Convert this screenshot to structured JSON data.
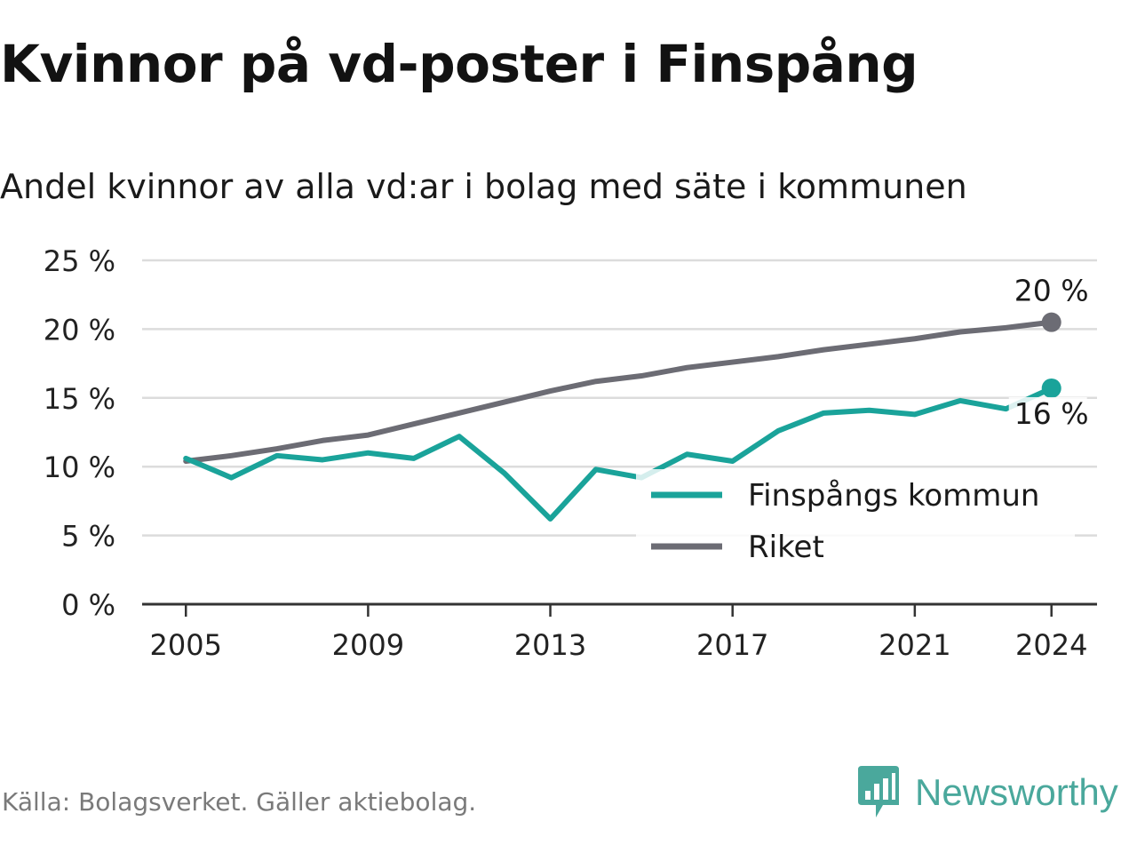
{
  "title": "Kvinnor på vd-poster i Finspång",
  "subtitle": "Andel kvinnor av alla vd:ar i bolag med säte i kommunen",
  "source": "Källa: Bolagsverket. Gäller aktiebolag.",
  "brand": {
    "name": "Newsworthy",
    "icon": "newsworthy-logo-icon",
    "color": "#4aa89c"
  },
  "chart_data": {
    "type": "line",
    "x": [
      2005,
      2006,
      2007,
      2008,
      2009,
      2010,
      2011,
      2012,
      2013,
      2014,
      2015,
      2016,
      2017,
      2018,
      2019,
      2020,
      2021,
      2022,
      2023,
      2024
    ],
    "xticks": [
      2005,
      2009,
      2013,
      2017,
      2021,
      2024
    ],
    "xtick_labels": [
      "2005",
      "2009",
      "2013",
      "2017",
      "2021",
      "2024"
    ],
    "yticks": [
      0,
      5,
      10,
      15,
      20,
      25
    ],
    "ytick_labels": [
      "0 %",
      "5 %",
      "10 %",
      "15 %",
      "20 %",
      "25 %"
    ],
    "ylim": [
      0,
      25
    ],
    "xlim": [
      2004.04,
      2025.0
    ],
    "grid": true,
    "legend_position": "bottom-right",
    "series": [
      {
        "name": "Finspångs kommun",
        "color": "#1aa39a",
        "values": [
          10.6,
          9.2,
          10.8,
          10.5,
          11.0,
          10.6,
          12.2,
          9.5,
          6.2,
          9.8,
          9.2,
          10.9,
          10.4,
          12.6,
          13.9,
          14.1,
          13.8,
          14.8,
          14.2,
          15.7
        ],
        "end_label": "16 %"
      },
      {
        "name": "Riket",
        "color": "#6c6c74",
        "values": [
          10.4,
          10.8,
          11.3,
          11.9,
          12.3,
          13.1,
          13.9,
          14.7,
          15.5,
          16.2,
          16.6,
          17.2,
          17.6,
          18.0,
          18.5,
          18.9,
          19.3,
          19.8,
          20.1,
          20.5
        ],
        "end_label": "20 %"
      }
    ]
  }
}
